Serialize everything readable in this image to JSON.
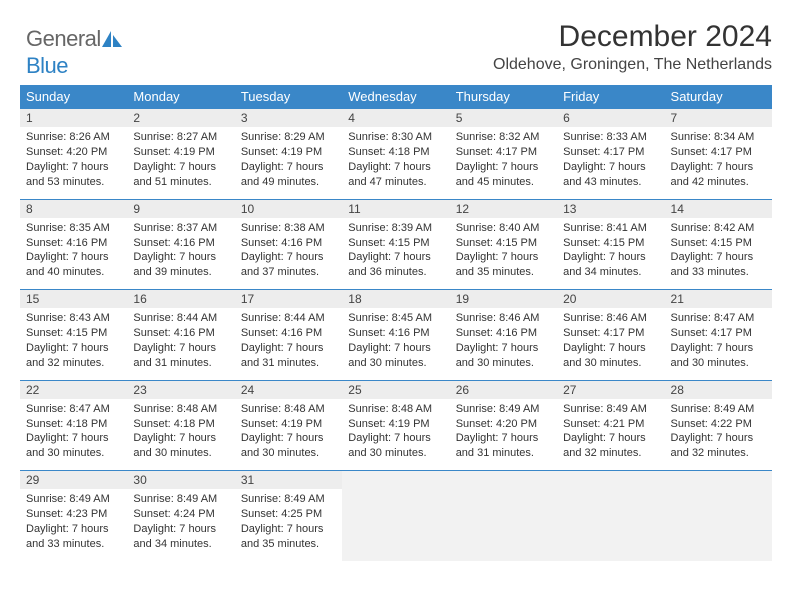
{
  "brand": {
    "general": "General",
    "blue": "Blue"
  },
  "title": "December 2024",
  "location": "Oldehove, Groningen, The Netherlands",
  "colors": {
    "header_bg": "#3a87c8",
    "daynum_bg": "#ededed",
    "divider": "#3a87c8",
    "empty_bg": "#f2f2f2",
    "logo_icon": "#2e82c4"
  },
  "weekdays": [
    "Sunday",
    "Monday",
    "Tuesday",
    "Wednesday",
    "Thursday",
    "Friday",
    "Saturday"
  ],
  "weeks": [
    {
      "nums": [
        "1",
        "2",
        "3",
        "4",
        "5",
        "6",
        "7"
      ],
      "cells": [
        {
          "sunrise": "Sunrise: 8:26 AM",
          "sunset": "Sunset: 4:20 PM",
          "daylight": "Daylight: 7 hours and 53 minutes."
        },
        {
          "sunrise": "Sunrise: 8:27 AM",
          "sunset": "Sunset: 4:19 PM",
          "daylight": "Daylight: 7 hours and 51 minutes."
        },
        {
          "sunrise": "Sunrise: 8:29 AM",
          "sunset": "Sunset: 4:19 PM",
          "daylight": "Daylight: 7 hours and 49 minutes."
        },
        {
          "sunrise": "Sunrise: 8:30 AM",
          "sunset": "Sunset: 4:18 PM",
          "daylight": "Daylight: 7 hours and 47 minutes."
        },
        {
          "sunrise": "Sunrise: 8:32 AM",
          "sunset": "Sunset: 4:17 PM",
          "daylight": "Daylight: 7 hours and 45 minutes."
        },
        {
          "sunrise": "Sunrise: 8:33 AM",
          "sunset": "Sunset: 4:17 PM",
          "daylight": "Daylight: 7 hours and 43 minutes."
        },
        {
          "sunrise": "Sunrise: 8:34 AM",
          "sunset": "Sunset: 4:17 PM",
          "daylight": "Daylight: 7 hours and 42 minutes."
        }
      ]
    },
    {
      "nums": [
        "8",
        "9",
        "10",
        "11",
        "12",
        "13",
        "14"
      ],
      "cells": [
        {
          "sunrise": "Sunrise: 8:35 AM",
          "sunset": "Sunset: 4:16 PM",
          "daylight": "Daylight: 7 hours and 40 minutes."
        },
        {
          "sunrise": "Sunrise: 8:37 AM",
          "sunset": "Sunset: 4:16 PM",
          "daylight": "Daylight: 7 hours and 39 minutes."
        },
        {
          "sunrise": "Sunrise: 8:38 AM",
          "sunset": "Sunset: 4:16 PM",
          "daylight": "Daylight: 7 hours and 37 minutes."
        },
        {
          "sunrise": "Sunrise: 8:39 AM",
          "sunset": "Sunset: 4:15 PM",
          "daylight": "Daylight: 7 hours and 36 minutes."
        },
        {
          "sunrise": "Sunrise: 8:40 AM",
          "sunset": "Sunset: 4:15 PM",
          "daylight": "Daylight: 7 hours and 35 minutes."
        },
        {
          "sunrise": "Sunrise: 8:41 AM",
          "sunset": "Sunset: 4:15 PM",
          "daylight": "Daylight: 7 hours and 34 minutes."
        },
        {
          "sunrise": "Sunrise: 8:42 AM",
          "sunset": "Sunset: 4:15 PM",
          "daylight": "Daylight: 7 hours and 33 minutes."
        }
      ]
    },
    {
      "nums": [
        "15",
        "16",
        "17",
        "18",
        "19",
        "20",
        "21"
      ],
      "cells": [
        {
          "sunrise": "Sunrise: 8:43 AM",
          "sunset": "Sunset: 4:15 PM",
          "daylight": "Daylight: 7 hours and 32 minutes."
        },
        {
          "sunrise": "Sunrise: 8:44 AM",
          "sunset": "Sunset: 4:16 PM",
          "daylight": "Daylight: 7 hours and 31 minutes."
        },
        {
          "sunrise": "Sunrise: 8:44 AM",
          "sunset": "Sunset: 4:16 PM",
          "daylight": "Daylight: 7 hours and 31 minutes."
        },
        {
          "sunrise": "Sunrise: 8:45 AM",
          "sunset": "Sunset: 4:16 PM",
          "daylight": "Daylight: 7 hours and 30 minutes."
        },
        {
          "sunrise": "Sunrise: 8:46 AM",
          "sunset": "Sunset: 4:16 PM",
          "daylight": "Daylight: 7 hours and 30 minutes."
        },
        {
          "sunrise": "Sunrise: 8:46 AM",
          "sunset": "Sunset: 4:17 PM",
          "daylight": "Daylight: 7 hours and 30 minutes."
        },
        {
          "sunrise": "Sunrise: 8:47 AM",
          "sunset": "Sunset: 4:17 PM",
          "daylight": "Daylight: 7 hours and 30 minutes."
        }
      ]
    },
    {
      "nums": [
        "22",
        "23",
        "24",
        "25",
        "26",
        "27",
        "28"
      ],
      "cells": [
        {
          "sunrise": "Sunrise: 8:47 AM",
          "sunset": "Sunset: 4:18 PM",
          "daylight": "Daylight: 7 hours and 30 minutes."
        },
        {
          "sunrise": "Sunrise: 8:48 AM",
          "sunset": "Sunset: 4:18 PM",
          "daylight": "Daylight: 7 hours and 30 minutes."
        },
        {
          "sunrise": "Sunrise: 8:48 AM",
          "sunset": "Sunset: 4:19 PM",
          "daylight": "Daylight: 7 hours and 30 minutes."
        },
        {
          "sunrise": "Sunrise: 8:48 AM",
          "sunset": "Sunset: 4:19 PM",
          "daylight": "Daylight: 7 hours and 30 minutes."
        },
        {
          "sunrise": "Sunrise: 8:49 AM",
          "sunset": "Sunset: 4:20 PM",
          "daylight": "Daylight: 7 hours and 31 minutes."
        },
        {
          "sunrise": "Sunrise: 8:49 AM",
          "sunset": "Sunset: 4:21 PM",
          "daylight": "Daylight: 7 hours and 32 minutes."
        },
        {
          "sunrise": "Sunrise: 8:49 AM",
          "sunset": "Sunset: 4:22 PM",
          "daylight": "Daylight: 7 hours and 32 minutes."
        }
      ]
    },
    {
      "nums": [
        "29",
        "30",
        "31",
        "",
        "",
        "",
        ""
      ],
      "cells": [
        {
          "sunrise": "Sunrise: 8:49 AM",
          "sunset": "Sunset: 4:23 PM",
          "daylight": "Daylight: 7 hours and 33 minutes."
        },
        {
          "sunrise": "Sunrise: 8:49 AM",
          "sunset": "Sunset: 4:24 PM",
          "daylight": "Daylight: 7 hours and 34 minutes."
        },
        {
          "sunrise": "Sunrise: 8:49 AM",
          "sunset": "Sunset: 4:25 PM",
          "daylight": "Daylight: 7 hours and 35 minutes."
        },
        null,
        null,
        null,
        null
      ]
    }
  ]
}
